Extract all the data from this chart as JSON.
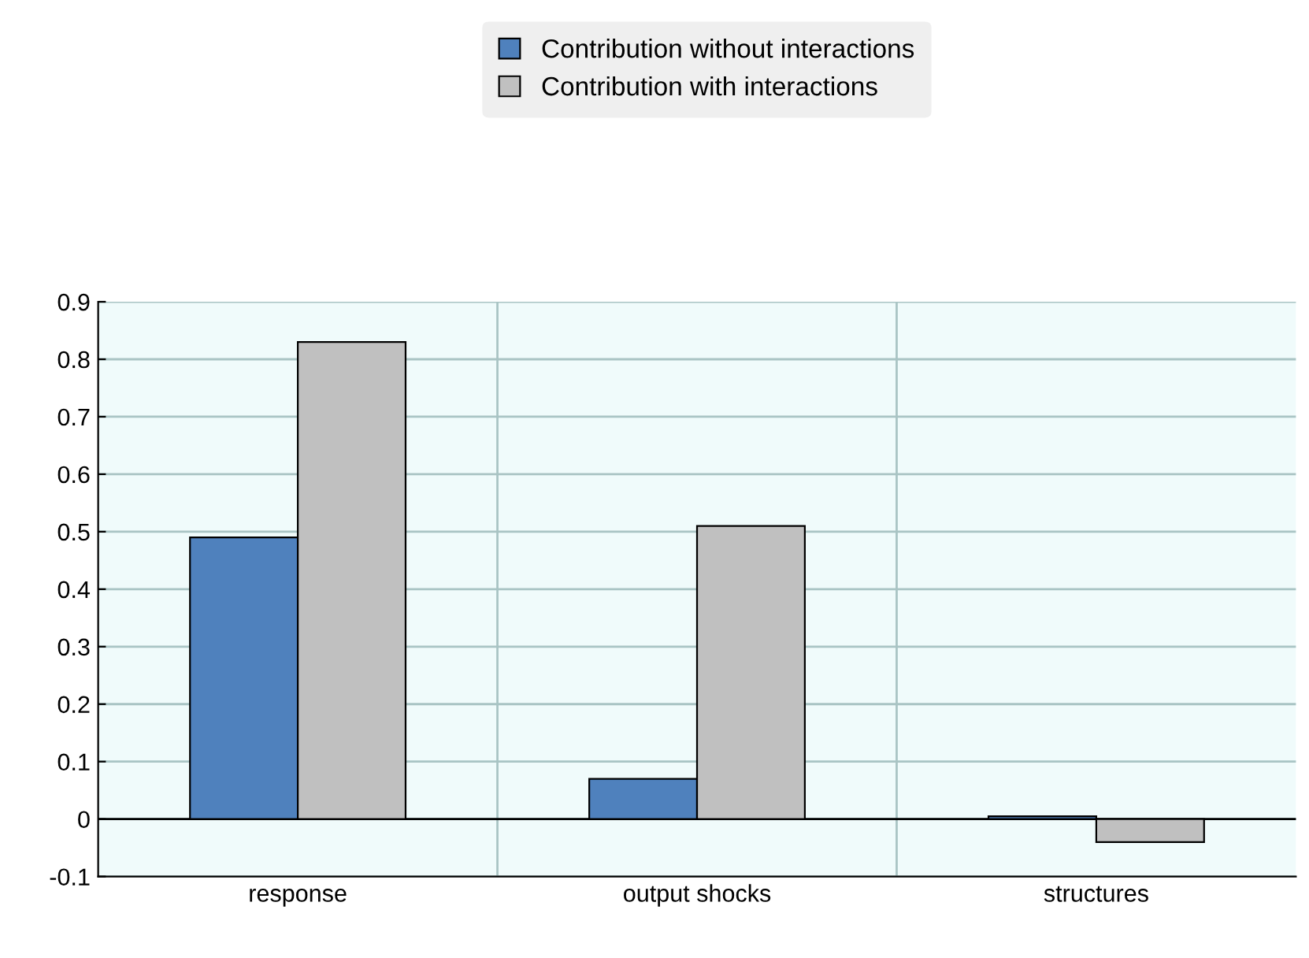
{
  "chart_data": {
    "type": "bar",
    "categories": [
      "response",
      "output shocks",
      "structures"
    ],
    "series": [
      {
        "name": "Contribution without interactions",
        "color": "#4f81bd",
        "values": [
          0.49,
          0.07,
          0.005
        ]
      },
      {
        "name": "Contribution with interactions",
        "color": "#c0c0c0",
        "values": [
          0.83,
          0.51,
          -0.04
        ]
      }
    ],
    "ylim": [
      -0.1,
      0.9
    ],
    "yticks": [
      -0.1,
      0,
      0.1,
      0.2,
      0.3,
      0.4,
      0.5,
      0.6,
      0.7,
      0.8,
      0.9
    ],
    "grid": true,
    "legend": "top"
  }
}
